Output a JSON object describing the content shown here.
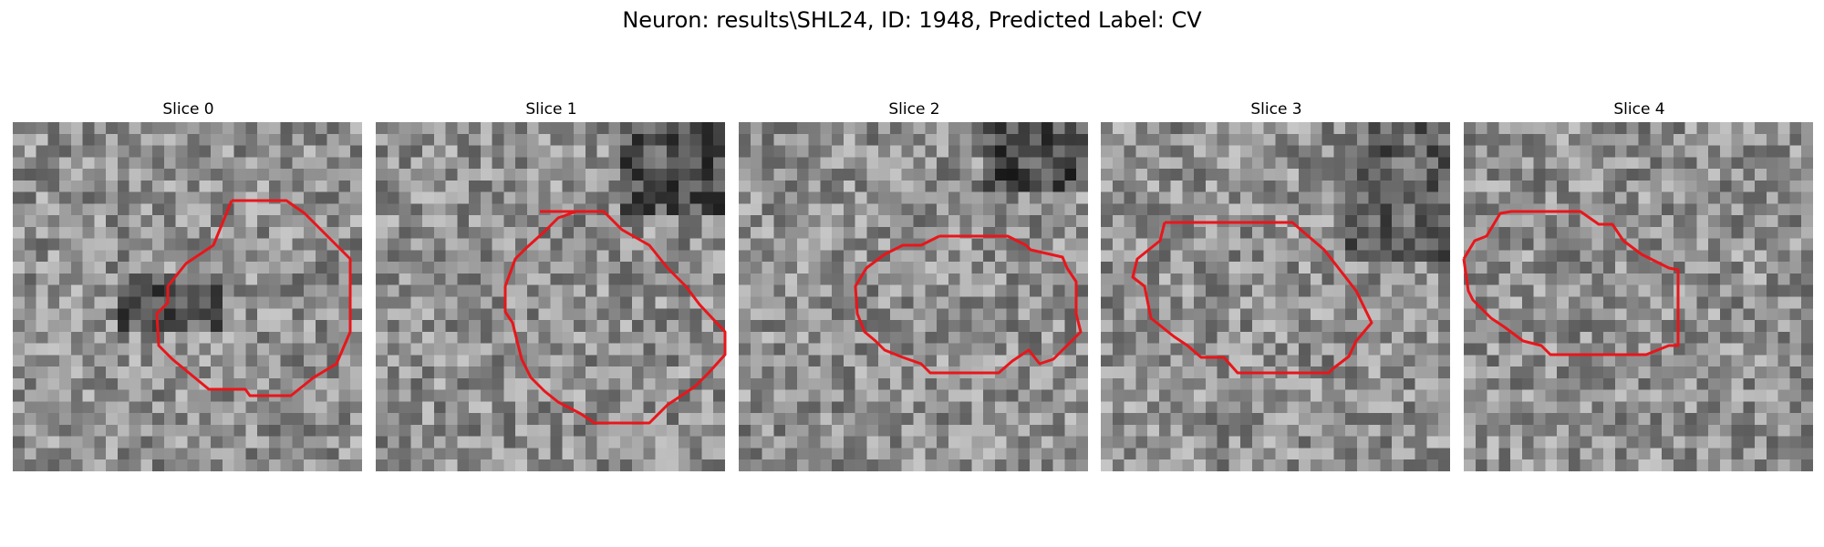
{
  "title": "Neuron: results\\SHL24, ID: 1948, Predicted Label: CV",
  "contour_color": "#e8161b",
  "slices": [
    {
      "label": "Slice 0",
      "seed": 11,
      "dark_center": true
    },
    {
      "label": "Slice 1",
      "seed": 23,
      "dark_center": false
    },
    {
      "label": "Slice 2",
      "seed": 37,
      "dark_center": false
    },
    {
      "label": "Slice 3",
      "seed": 41,
      "dark_center": false
    },
    {
      "label": "Slice 4",
      "seed": 59,
      "dark_center": false
    }
  ]
}
